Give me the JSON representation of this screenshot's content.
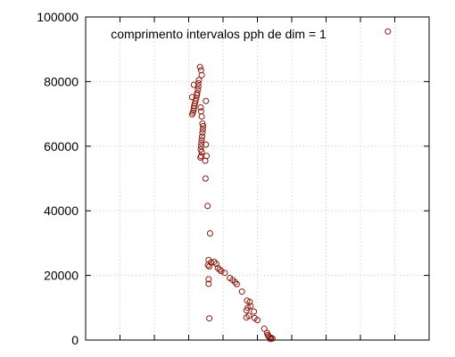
{
  "chart_data": {
    "type": "scatter",
    "title": "comprimento intervalos pph de dim = 1",
    "xlabel": "",
    "ylabel": "",
    "xlim": [
      0,
      10
    ],
    "ylim": [
      0,
      100000
    ],
    "x_ticks": [
      0,
      1,
      2,
      3,
      4,
      5,
      6,
      7,
      8,
      9,
      10
    ],
    "y_ticks": [
      0,
      20000,
      40000,
      60000,
      80000,
      100000
    ],
    "y_tick_labels": [
      "0",
      "20000",
      "40000",
      "60000",
      "80000",
      "100000"
    ],
    "grid": true,
    "marker": "open-circle",
    "marker_color": "#8b1a0e",
    "series": [
      {
        "points": [
          [
            3.33,
            84500
          ],
          [
            3.36,
            83500
          ],
          [
            3.38,
            82000
          ],
          [
            3.3,
            80500
          ],
          [
            3.28,
            79500
          ],
          [
            3.15,
            79000
          ],
          [
            3.28,
            78500
          ],
          [
            3.27,
            77500
          ],
          [
            3.25,
            76500
          ],
          [
            3.24,
            75800
          ],
          [
            3.1,
            75200
          ],
          [
            3.22,
            74800
          ],
          [
            3.2,
            74000
          ],
          [
            3.18,
            73200
          ],
          [
            3.16,
            72500
          ],
          [
            3.15,
            71800
          ],
          [
            3.14,
            71000
          ],
          [
            3.12,
            70400
          ],
          [
            3.1,
            69800
          ],
          [
            3.5,
            74000
          ],
          [
            3.35,
            72000
          ],
          [
            3.36,
            70800
          ],
          [
            3.38,
            69200
          ],
          [
            3.4,
            67000
          ],
          [
            3.42,
            66200
          ],
          [
            3.41,
            65200
          ],
          [
            3.4,
            64200
          ],
          [
            3.39,
            63000
          ],
          [
            3.38,
            62000
          ],
          [
            3.37,
            61000
          ],
          [
            3.36,
            60000
          ],
          [
            3.35,
            59000
          ],
          [
            3.38,
            58200
          ],
          [
            3.36,
            57000
          ],
          [
            3.34,
            56500
          ],
          [
            3.5,
            60500
          ],
          [
            3.52,
            57000
          ],
          [
            3.48,
            55500
          ],
          [
            3.49,
            50000
          ],
          [
            3.55,
            41500
          ],
          [
            3.62,
            33000
          ],
          [
            3.58,
            24800
          ],
          [
            3.65,
            24000
          ],
          [
            3.74,
            24200
          ],
          [
            3.8,
            23600
          ],
          [
            3.56,
            23200
          ],
          [
            3.6,
            22800
          ],
          [
            3.85,
            22300
          ],
          [
            3.9,
            21800
          ],
          [
            3.95,
            21300
          ],
          [
            4.05,
            20800
          ],
          [
            4.2,
            19200
          ],
          [
            4.28,
            18600
          ],
          [
            4.35,
            17900
          ],
          [
            4.4,
            17300
          ],
          [
            3.58,
            18800
          ],
          [
            3.58,
            17400
          ],
          [
            4.55,
            15000
          ],
          [
            4.7,
            12200
          ],
          [
            4.78,
            11800
          ],
          [
            4.8,
            10500
          ],
          [
            4.72,
            10000
          ],
          [
            4.68,
            9200
          ],
          [
            4.9,
            8800
          ],
          [
            4.75,
            7500
          ],
          [
            4.68,
            7000
          ],
          [
            4.92,
            6800
          ],
          [
            5.0,
            6200
          ],
          [
            3.6,
            6700
          ],
          [
            5.2,
            3500
          ],
          [
            5.28,
            2200
          ],
          [
            5.3,
            1600
          ],
          [
            5.32,
            1200
          ],
          [
            5.36,
            900
          ],
          [
            5.4,
            700
          ],
          [
            5.44,
            500
          ],
          [
            5.38,
            300
          ],
          [
            8.8,
            95500
          ]
        ]
      }
    ]
  }
}
